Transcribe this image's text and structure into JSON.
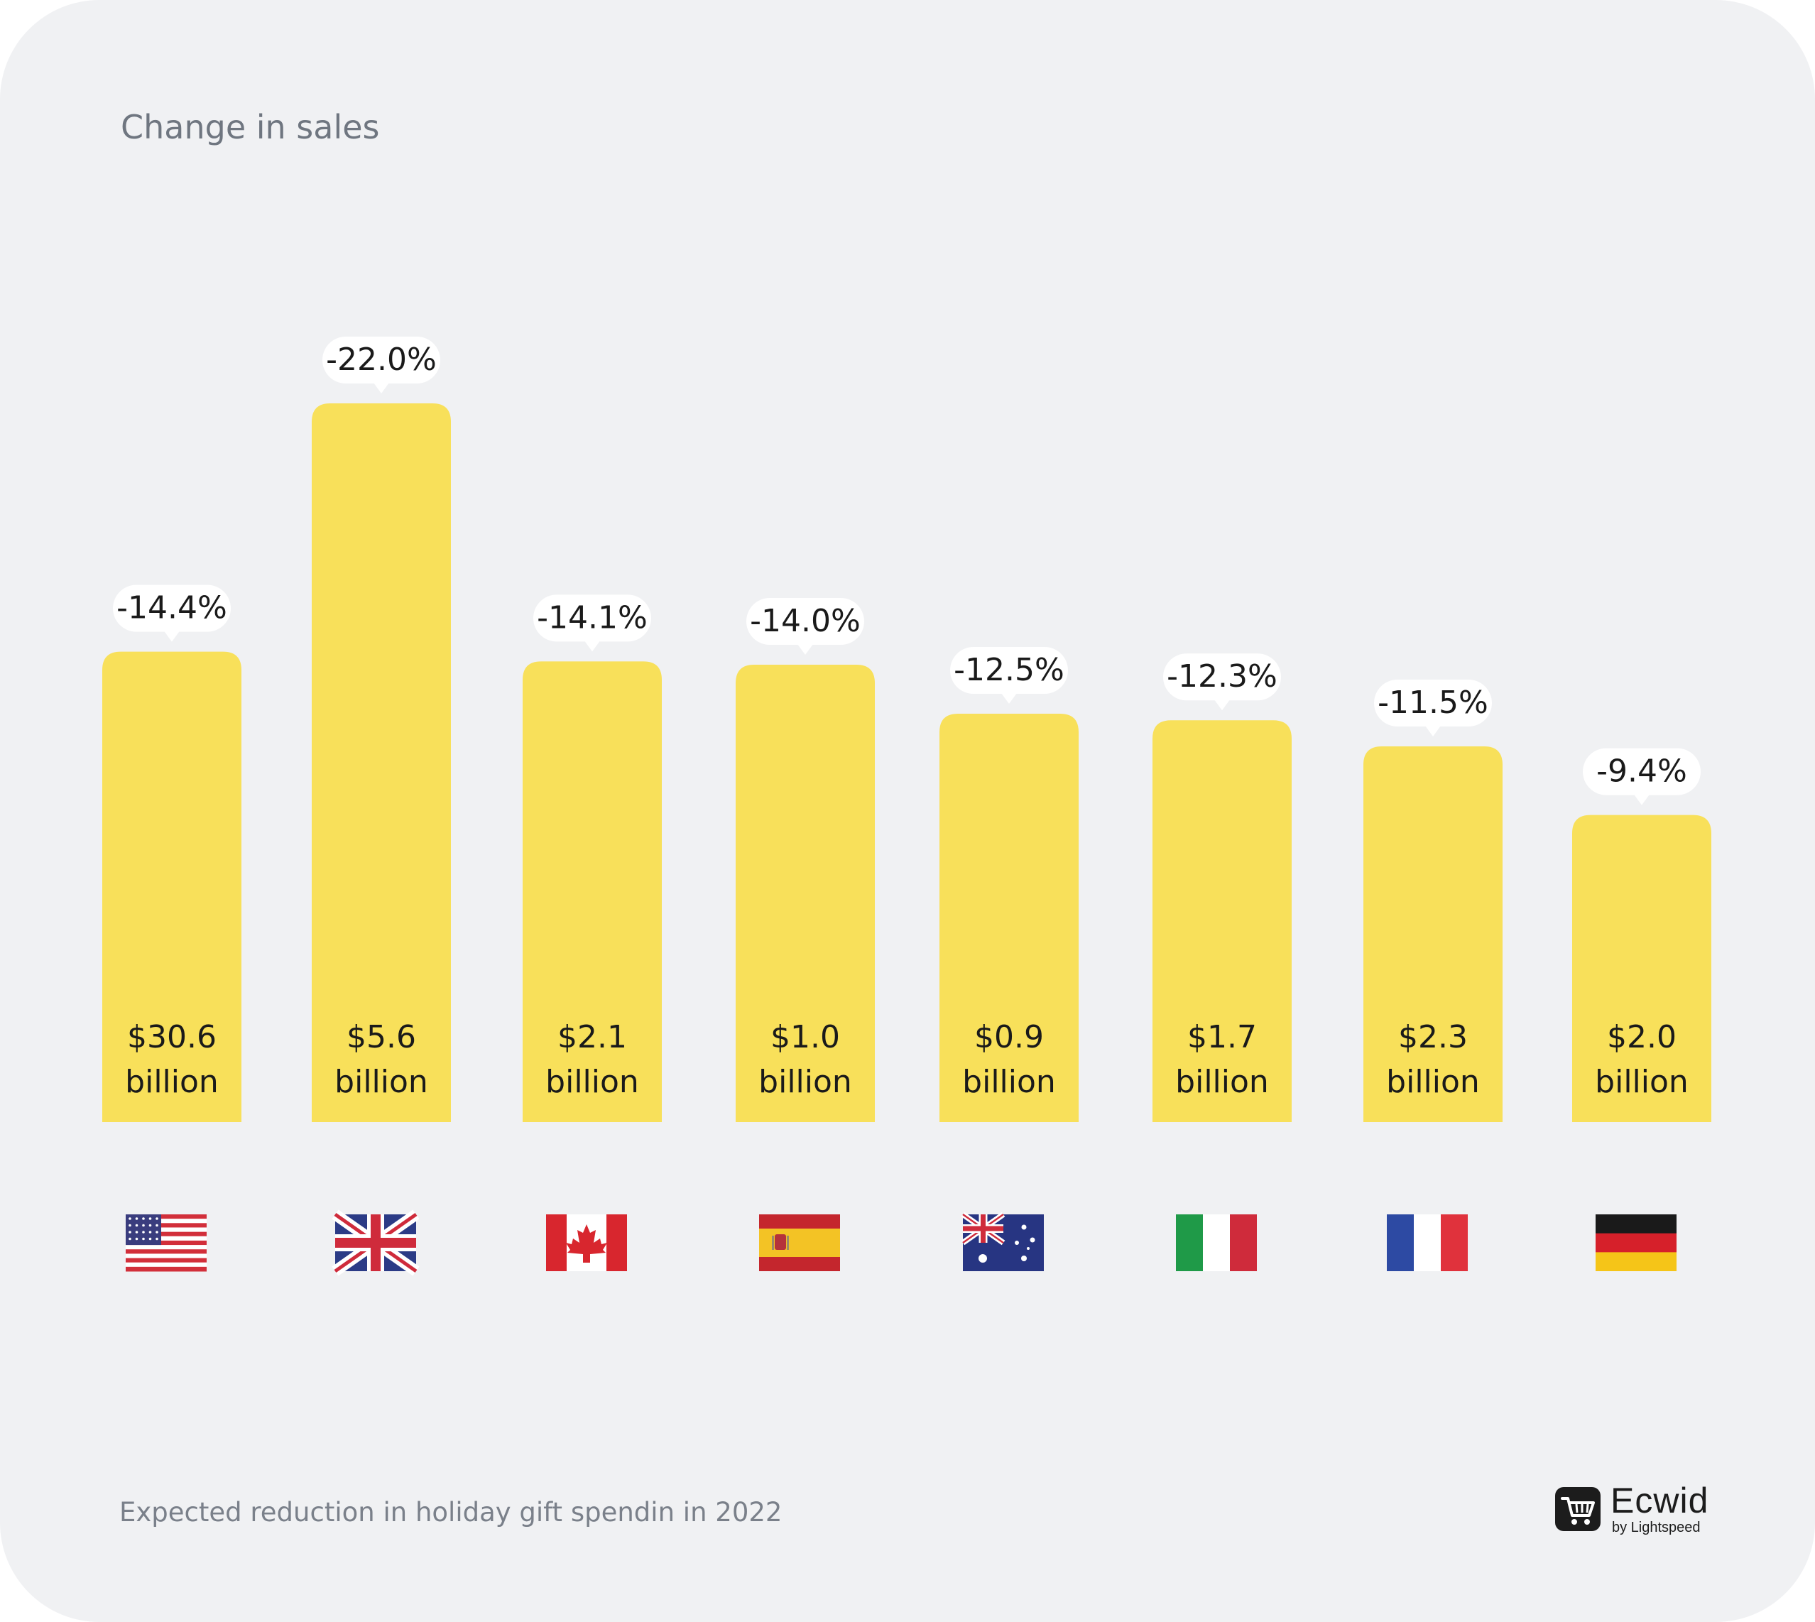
{
  "chart_data": {
    "type": "bar",
    "title": "Change in sales",
    "caption": "Expected reduction in holiday gift spendin in 2022",
    "categories": [
      "USA",
      "UK",
      "Canada",
      "Spain",
      "Australia",
      "Italy",
      "France",
      "Germany"
    ],
    "flag_icons": [
      "us-flag-icon",
      "uk-flag-icon",
      "canada-flag-icon",
      "spain-flag-icon",
      "australia-flag-icon",
      "italy-flag-icon",
      "france-flag-icon",
      "germany-flag-icon"
    ],
    "change_percent": [
      -14.4,
      -22.0,
      -14.1,
      -14.0,
      -12.5,
      -12.3,
      -11.5,
      -9.4
    ],
    "change_labels": [
      "-14.4%",
      "-22.0%",
      "-14.1%",
      "-14.0%",
      "-12.5%",
      "-12.3%",
      "-11.5%",
      "-9.4%"
    ],
    "spending_billion": [
      30.6,
      5.6,
      2.1,
      1.0,
      0.9,
      1.7,
      2.3,
      2.0
    ],
    "spending_amounts": [
      "$30.6",
      "$5.6",
      "$2.1",
      "$1.0",
      "$0.9",
      "$1.7",
      "$2.3",
      "$2.0"
    ],
    "spending_unit": "billion",
    "bar_value_source": "change_percent magnitude",
    "ylim": [
      0,
      22
    ],
    "grid": false,
    "colors": {
      "bar": "#f8e05a",
      "background": "#f0f1f3",
      "label_bubble": "#ffffff",
      "text": "#1a1a1a"
    }
  },
  "brand": {
    "name": "Ecwid",
    "tagline": "by Lightspeed"
  }
}
